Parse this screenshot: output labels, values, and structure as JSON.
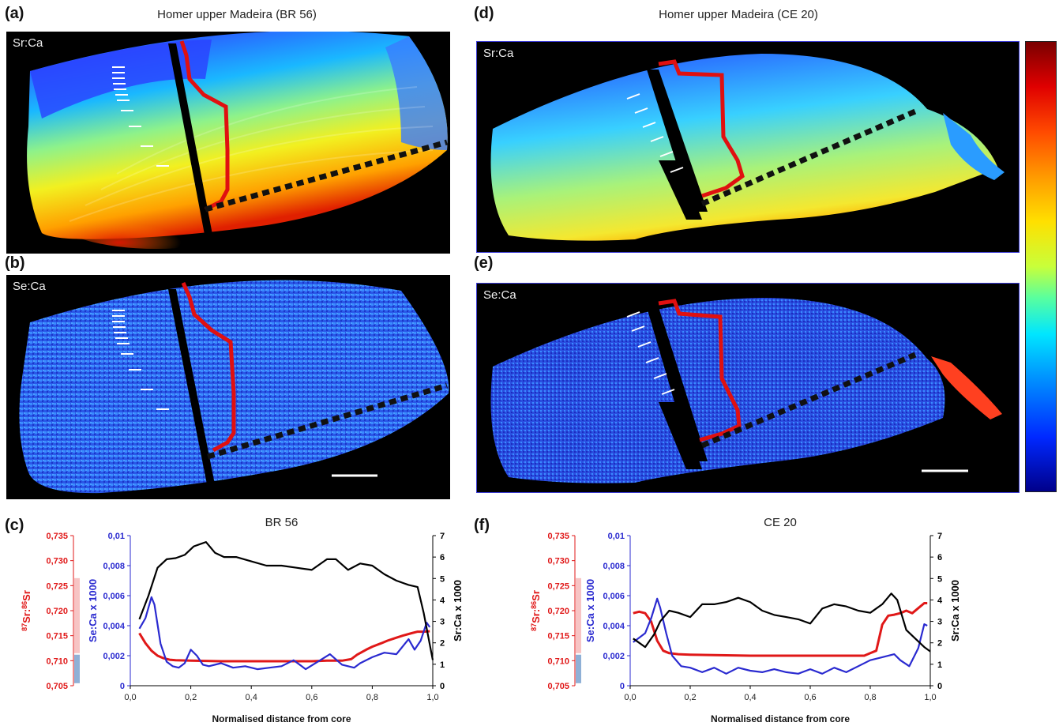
{
  "panels": {
    "a": {
      "label": "(a)",
      "title": "Homer upper Madeira (BR 56)",
      "map": "Sr:Ca"
    },
    "b": {
      "label": "(b)",
      "map": "Se:Ca"
    },
    "c": {
      "label": "(c)"
    },
    "d": {
      "label": "(d)",
      "title": "Homer upper Madeira (CE 20)",
      "map": "Sr:Ca"
    },
    "e": {
      "label": "(e)",
      "map": "Se:Ca"
    },
    "f": {
      "label": "(f)"
    }
  },
  "colors": {
    "sr_isotope": "#e01818",
    "se_ca": "#2a2ad0",
    "sr_ca": "#000000",
    "range_pink": "#f7c4c4",
    "range_blue": "#8fb0d6",
    "map_frame": "#3b3bd6"
  },
  "chart_data": [
    {
      "type": "line",
      "title": "BR 56",
      "xlabel": "Normalised distance from core",
      "xlim": [
        0,
        1.0
      ],
      "x_ticks": [
        "0,0",
        "0,2",
        "0,4",
        "0,6",
        "0,8",
        "1,0"
      ],
      "left_outer_axis": {
        "label": "87Sr:86Sr",
        "label_sup1": "87",
        "label_mid": "Sr:",
        "label_sup2": "86",
        "label_end": "Sr",
        "lim": [
          0.705,
          0.735
        ],
        "ticks": [
          "0,705",
          "0,710",
          "0,715",
          "0,720",
          "0,725",
          "0,730",
          "0,735"
        ]
      },
      "left_inner_axis": {
        "label": "Se:Ca x 1000",
        "lim": [
          0,
          0.01
        ],
        "ticks": [
          "0",
          "0,002",
          "0,004",
          "0,006",
          "0,008",
          "0,01"
        ]
      },
      "right_axis": {
        "label": "Sr:Ca x 1000",
        "lim": [
          0,
          7
        ],
        "ticks": [
          "0",
          "1",
          "2",
          "3",
          "4",
          "5",
          "6",
          "7"
        ]
      },
      "ranges": [
        {
          "color": "pink",
          "from": 0.7115,
          "to": 0.7265
        },
        {
          "color": "blue",
          "from": 0.7055,
          "to": 0.7112
        }
      ],
      "series": [
        {
          "axis": "sr_isotope",
          "color": "red",
          "x": [
            0.03,
            0.05,
            0.07,
            0.09,
            0.11,
            0.13,
            0.15,
            0.2,
            0.3,
            0.4,
            0.5,
            0.6,
            0.65,
            0.7,
            0.73,
            0.75,
            0.78,
            0.8,
            0.83,
            0.85,
            0.88,
            0.9,
            0.93,
            0.95,
            0.97,
            0.99
          ],
          "y": [
            0.7155,
            0.7135,
            0.712,
            0.711,
            0.7105,
            0.7102,
            0.7101,
            0.71,
            0.7099,
            0.7099,
            0.7099,
            0.7099,
            0.71,
            0.71,
            0.7103,
            0.7112,
            0.7122,
            0.7128,
            0.7135,
            0.714,
            0.7146,
            0.715,
            0.7155,
            0.7158,
            0.7158,
            0.7159
          ]
        },
        {
          "axis": "se_ca",
          "color": "blue",
          "x": [
            0.03,
            0.05,
            0.07,
            0.08,
            0.1,
            0.12,
            0.14,
            0.16,
            0.18,
            0.2,
            0.22,
            0.24,
            0.26,
            0.3,
            0.34,
            0.38,
            0.42,
            0.46,
            0.5,
            0.54,
            0.58,
            0.62,
            0.66,
            0.7,
            0.74,
            0.76,
            0.8,
            0.84,
            0.88,
            0.9,
            0.92,
            0.94,
            0.96,
            0.98,
            0.99
          ],
          "y": [
            0.0038,
            0.0045,
            0.0059,
            0.0054,
            0.0028,
            0.0016,
            0.0013,
            0.0012,
            0.0015,
            0.0024,
            0.002,
            0.0014,
            0.0013,
            0.0015,
            0.0012,
            0.0013,
            0.0011,
            0.0012,
            0.0013,
            0.0017,
            0.0011,
            0.0016,
            0.0021,
            0.0014,
            0.0012,
            0.0015,
            0.0019,
            0.0022,
            0.0021,
            0.0026,
            0.0031,
            0.0024,
            0.003,
            0.0042,
            0.0039
          ]
        },
        {
          "axis": "sr_ca",
          "color": "black",
          "x": [
            0.03,
            0.06,
            0.09,
            0.12,
            0.15,
            0.18,
            0.21,
            0.25,
            0.28,
            0.31,
            0.35,
            0.4,
            0.45,
            0.5,
            0.55,
            0.6,
            0.65,
            0.68,
            0.72,
            0.76,
            0.8,
            0.84,
            0.88,
            0.92,
            0.95,
            0.97,
            1.0
          ],
          "y": [
            3.1,
            4.2,
            5.5,
            5.9,
            5.95,
            6.1,
            6.5,
            6.7,
            6.2,
            6.0,
            6.0,
            5.8,
            5.6,
            5.6,
            5.5,
            5.4,
            5.9,
            5.9,
            5.4,
            5.7,
            5.6,
            5.2,
            4.9,
            4.7,
            4.6,
            3.4,
            1.2
          ]
        }
      ]
    },
    {
      "type": "line",
      "title": "CE 20",
      "xlabel": "Normalised distance from core",
      "xlim": [
        0,
        1.0
      ],
      "x_ticks": [
        "0,0",
        "0,2",
        "0,4",
        "0,6",
        "0,8",
        "1,0"
      ],
      "left_outer_axis": {
        "label": "87Sr:86Sr",
        "label_sup1": "87",
        "label_mid": "Sr:",
        "label_sup2": "86",
        "label_end": "Sr",
        "lim": [
          0.705,
          0.735
        ],
        "ticks": [
          "0,705",
          "0,710",
          "0,715",
          "0,720",
          "0,725",
          "0,730",
          "0,735"
        ]
      },
      "left_inner_axis": {
        "label": "Se:Ca x 1000",
        "lim": [
          0,
          0.01
        ],
        "ticks": [
          "0",
          "0,002",
          "0,004",
          "0,006",
          "0,008",
          "0,01"
        ]
      },
      "right_axis": {
        "label": "Sr:Ca x 1000",
        "lim": [
          0,
          7
        ],
        "ticks": [
          "0",
          "1",
          "2",
          "3",
          "4",
          "5",
          "6",
          "7"
        ]
      },
      "ranges": [
        {
          "color": "pink",
          "from": 0.7115,
          "to": 0.7265
        },
        {
          "color": "blue",
          "from": 0.7055,
          "to": 0.7112
        }
      ],
      "series": [
        {
          "axis": "sr_isotope",
          "color": "red",
          "x": [
            0.01,
            0.03,
            0.05,
            0.07,
            0.09,
            0.11,
            0.13,
            0.16,
            0.2,
            0.3,
            0.4,
            0.5,
            0.6,
            0.7,
            0.78,
            0.8,
            0.82,
            0.84,
            0.86,
            0.88,
            0.9,
            0.92,
            0.94,
            0.96,
            0.98,
            0.99
          ],
          "y": [
            0.7195,
            0.7198,
            0.7195,
            0.7178,
            0.714,
            0.712,
            0.7115,
            0.7113,
            0.7112,
            0.7111,
            0.711,
            0.711,
            0.711,
            0.711,
            0.711,
            0.7115,
            0.712,
            0.7172,
            0.719,
            0.7192,
            0.7195,
            0.72,
            0.7195,
            0.7205,
            0.7215,
            0.7215
          ]
        },
        {
          "axis": "se_ca",
          "color": "blue",
          "x": [
            0.01,
            0.03,
            0.05,
            0.07,
            0.09,
            0.1,
            0.12,
            0.14,
            0.17,
            0.2,
            0.24,
            0.28,
            0.32,
            0.36,
            0.4,
            0.44,
            0.48,
            0.52,
            0.56,
            0.6,
            0.64,
            0.68,
            0.72,
            0.76,
            0.8,
            0.84,
            0.88,
            0.9,
            0.93,
            0.96,
            0.98,
            0.99
          ],
          "y": [
            0.0029,
            0.0032,
            0.0035,
            0.0045,
            0.0058,
            0.0052,
            0.0035,
            0.002,
            0.0013,
            0.0012,
            0.0009,
            0.0012,
            0.0008,
            0.0012,
            0.001,
            0.0009,
            0.0011,
            0.0009,
            0.0008,
            0.0011,
            0.0008,
            0.0012,
            0.0009,
            0.0013,
            0.0017,
            0.0019,
            0.0021,
            0.0017,
            0.0013,
            0.0025,
            0.0041,
            0.004
          ]
        },
        {
          "axis": "sr_ca",
          "color": "black",
          "x": [
            0.01,
            0.03,
            0.05,
            0.08,
            0.1,
            0.13,
            0.16,
            0.2,
            0.24,
            0.28,
            0.32,
            0.36,
            0.4,
            0.44,
            0.48,
            0.52,
            0.56,
            0.6,
            0.64,
            0.68,
            0.72,
            0.76,
            0.8,
            0.84,
            0.87,
            0.89,
            0.92,
            0.95,
            0.98,
            1.0
          ],
          "y": [
            2.2,
            2.0,
            1.8,
            2.4,
            3.0,
            3.5,
            3.4,
            3.2,
            3.8,
            3.8,
            3.9,
            4.1,
            3.9,
            3.5,
            3.3,
            3.2,
            3.1,
            2.9,
            3.6,
            3.8,
            3.7,
            3.5,
            3.4,
            3.8,
            4.3,
            4.0,
            2.6,
            2.2,
            1.8,
            1.6
          ]
        }
      ]
    }
  ]
}
